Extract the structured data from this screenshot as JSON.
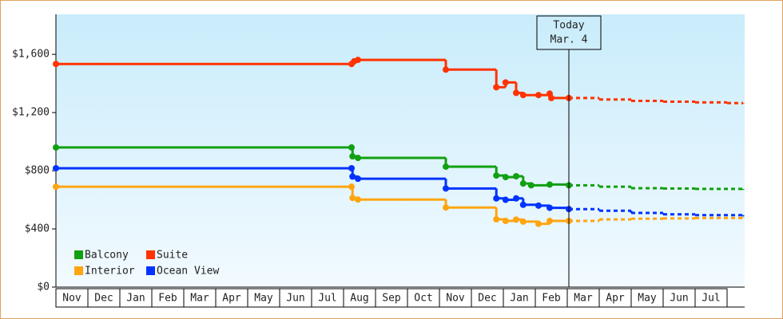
{
  "chart_data": {
    "type": "step-line",
    "ylim": [
      0,
      1875
    ],
    "yticks": [
      {
        "value": 0,
        "label": "$0"
      },
      {
        "value": 400,
        "label": "$400"
      },
      {
        "value": 800,
        "label": "$800"
      },
      {
        "value": 1200,
        "label": "$1,200"
      },
      {
        "value": 1600,
        "label": "$1,600"
      }
    ],
    "xlim": [
      0,
      21.55
    ],
    "xticks": [
      {
        "value": 0.5,
        "label": "Nov"
      },
      {
        "value": 1.5,
        "label": "Dec"
      },
      {
        "value": 2.5,
        "label": "Jan"
      },
      {
        "value": 3.5,
        "label": "Feb"
      },
      {
        "value": 4.5,
        "label": "Mar"
      },
      {
        "value": 5.5,
        "label": "Apr"
      },
      {
        "value": 6.5,
        "label": "May"
      },
      {
        "value": 7.5,
        "label": "Jun"
      },
      {
        "value": 8.5,
        "label": "Jul"
      },
      {
        "value": 9.5,
        "label": "Aug"
      },
      {
        "value": 10.5,
        "label": "Sep"
      },
      {
        "value": 11.5,
        "label": "Oct"
      },
      {
        "value": 12.5,
        "label": "Nov"
      },
      {
        "value": 13.5,
        "label": "Dec"
      },
      {
        "value": 14.5,
        "label": "Jan"
      },
      {
        "value": 15.5,
        "label": "Feb"
      },
      {
        "value": 16.5,
        "label": "Mar"
      },
      {
        "value": 17.5,
        "label": "Apr"
      },
      {
        "value": 18.5,
        "label": "May"
      },
      {
        "value": 19.5,
        "label": "Jun"
      },
      {
        "value": 20.5,
        "label": "Jul"
      }
    ],
    "annotation": {
      "x": 16.05,
      "lines": [
        "Today",
        "Mar. 4"
      ]
    },
    "legend": "bottom-left",
    "series": [
      {
        "name": "Balcony",
        "color": "#11a011",
        "x": [
          0,
          9.25,
          9.28,
          9.45,
          12.2,
          13.78,
          14.07,
          14.4,
          14.62,
          14.87,
          15.45,
          16.05
        ],
        "values": [
          960,
          960,
          899,
          888,
          828,
          767,
          756,
          762,
          712,
          700,
          705,
          700
        ],
        "forecast_x": [
          16.05,
          17,
          18,
          19,
          20,
          21.5
        ],
        "forecast_values": [
          700,
          690,
          680,
          678,
          675,
          668
        ]
      },
      {
        "name": "Suite",
        "color": "#ff3300",
        "x": [
          0,
          9.25,
          9.33,
          9.45,
          12.2,
          13.78,
          14.07,
          14.4,
          14.62,
          15.1,
          15.45,
          15.5,
          16.05
        ],
        "values": [
          1534,
          1534,
          1552,
          1562,
          1495,
          1374,
          1407,
          1335,
          1320,
          1320,
          1330,
          1300,
          1300
        ],
        "forecast_x": [
          16.05,
          17,
          18,
          19,
          20,
          21,
          21.5
        ],
        "forecast_values": [
          1300,
          1290,
          1280,
          1275,
          1270,
          1265,
          1260
        ]
      },
      {
        "name": "Interior",
        "color": "#ffa510",
        "x": [
          0,
          9.25,
          9.28,
          9.45,
          12.2,
          13.78,
          14.07,
          14.4,
          14.62,
          15.1,
          15.45,
          16.05
        ],
        "values": [
          690,
          690,
          613,
          602,
          547,
          466,
          455,
          464,
          450,
          435,
          455,
          455
        ],
        "forecast_x": [
          16.05,
          17,
          18,
          19,
          20,
          21.5
        ],
        "forecast_values": [
          455,
          465,
          470,
          472,
          475,
          480
        ]
      },
      {
        "name": "Ocean View",
        "color": "#0033ff",
        "x": [
          0,
          9.25,
          9.28,
          9.45,
          12.2,
          13.78,
          14.07,
          14.4,
          14.62,
          15.1,
          15.45,
          16.05
        ],
        "values": [
          817,
          817,
          760,
          745,
          678,
          610,
          600,
          610,
          566,
          560,
          545,
          536
        ],
        "forecast_x": [
          16.05,
          17,
          18,
          19,
          20,
          21.5
        ],
        "forecast_values": [
          536,
          525,
          510,
          500,
          495,
          486
        ]
      }
    ]
  }
}
